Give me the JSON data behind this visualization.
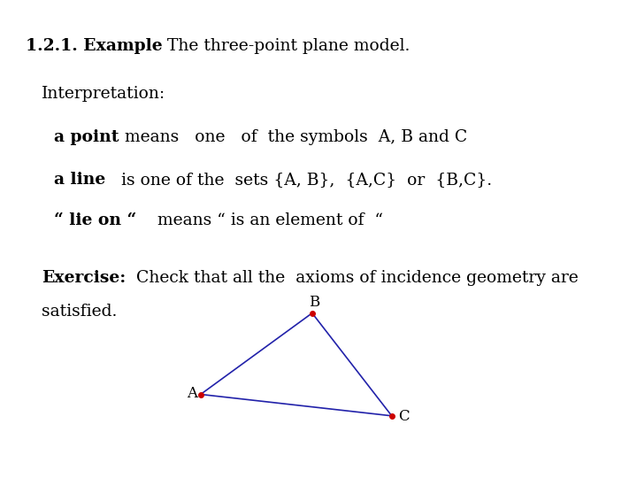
{
  "bg_color": "#ffffff",
  "title_bold": "1.2.1. Example",
  "title_normal": " The three-point plane model.",
  "interp_text": "Interpretation:",
  "line1_bold": "a point",
  "line1_normal": " means   one   of  the symbols  A, B and C",
  "line2_bold": "a line",
  "line2_normal": "   is one of the  sets {A, B},  {A,C}  or  {B,C}.",
  "line3_bold": "“ lie on “",
  "line3_normal": "    means “ is an element of  “",
  "exercise_bold": "Exercise:",
  "exercise_line1": "  Check that all the  axioms of incidence geometry are",
  "exercise_line2": "satisfied.",
  "triangle": {
    "A": [
      0.315,
      0.175
    ],
    "B": [
      0.49,
      0.345
    ],
    "C": [
      0.615,
      0.13
    ],
    "line_color": "#2222aa",
    "point_color": "#cc0000",
    "point_size": 25
  }
}
